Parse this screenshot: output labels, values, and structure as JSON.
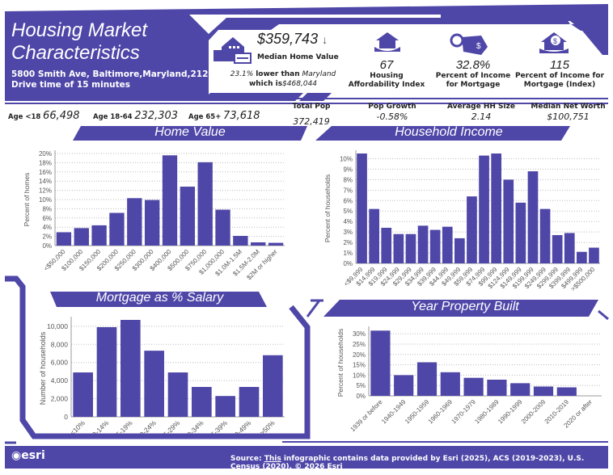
{
  "header": {
    "title_line1": "Housing Market",
    "title_line2": "Characteristics",
    "address": "5800 Smith Ave, Baltimore,Maryland,21209",
    "drive_time": "Drive time of 15 minutes"
  },
  "median_home": {
    "value": "$359,743",
    "arrow": "↓",
    "label": "Median Home Value",
    "compare_pct": "23.1%",
    "compare_text": "lower than",
    "compare_state": "Maryland",
    "which_is": "which is",
    "state_value": "$468,044",
    "icon": "house-icon"
  },
  "kpis": [
    {
      "value": "67",
      "label": "Housing Affordability Index",
      "icon": "house-hand-icon"
    },
    {
      "value": "32.8%",
      "label": "Percent of Income for Mortgage",
      "icon": "price-tag-icon"
    },
    {
      "value": "115",
      "label": "Percent of Income for Mortgage (Index)",
      "icon": "house-dollar-icon"
    }
  ],
  "ages": [
    {
      "label": "Age <18",
      "value": "66,498"
    },
    {
      "label": "Age 18-64",
      "value": "232,303"
    },
    {
      "label": "Age 65+",
      "value": "73,618"
    }
  ],
  "stats": [
    {
      "label": "Total Pop",
      "value": "372,419"
    },
    {
      "label": "Pop Growth",
      "value": "-0.58%"
    },
    {
      "label": "Average HH Size",
      "value": "2.14"
    },
    {
      "label": "Median Net Worth",
      "value": "$100,751"
    }
  ],
  "sections": {
    "home_value": "Home Value",
    "household_income": "Household Income",
    "mortgage": "Mortgage as % Salary",
    "year_built": "Year Property Built"
  },
  "footer": {
    "logo": "esri",
    "source_label": "Source:",
    "source_link": "This",
    "source_text": "infographic contains data provided by Esri (2025), ACS (2019-2023), U.S. Census (2020). © 2026 Esri"
  },
  "colors": {
    "brand": "#4f47a8",
    "grid": "#bbbbbb"
  },
  "chart_data": [
    {
      "type": "bar",
      "ylabel": "Percent of homes",
      "ylim": [
        0,
        20
      ],
      "yticks": [
        "0%",
        "2%",
        "4%",
        "6%",
        "8%",
        "10%",
        "12%",
        "14%",
        "16%",
        "18%",
        "20%"
      ],
      "categories": [
        "<$50,000",
        "$100,000",
        "$150,000",
        "$200,000",
        "$250,000",
        "$300,000",
        "$400,000",
        "$500,000",
        "$750,000",
        "$1,000,000",
        "$1.0M-1.5M",
        "$1.5M-2.0M",
        "$2M or higher"
      ],
      "values": [
        2.9,
        3.8,
        4.4,
        7.1,
        10.3,
        9.9,
        19.6,
        12.8,
        18.1,
        7.8,
        2.1,
        0.7,
        0.6
      ],
      "grid": true
    },
    {
      "type": "bar",
      "ylabel": "Percent of households",
      "ylim": [
        0,
        10.5
      ],
      "yticks": [
        "0%",
        "1%",
        "2%",
        "3%",
        "4%",
        "5%",
        "6%",
        "7%",
        "8%",
        "9%",
        "10%"
      ],
      "categories": [
        "<$9,999",
        "$14,999",
        "$19,999",
        "$24,999",
        "$29,999",
        "$34,999",
        "$39,999",
        "$44,999",
        "$49,999",
        "$59,999",
        "$74,999",
        "$99,999",
        "$124,999",
        "$149,999",
        "$199,999",
        "$249,999",
        "$299,999",
        "$399,999",
        "$499,999",
        ">$500,000"
      ],
      "values": [
        10.5,
        5.2,
        3.4,
        2.8,
        2.8,
        3.6,
        3.2,
        3.5,
        2.4,
        6.4,
        10.3,
        10.5,
        8.0,
        5.8,
        8.8,
        5.2,
        2.7,
        2.9,
        1.1,
        1.5
      ],
      "grid": true
    },
    {
      "type": "bar",
      "ylabel": "Number of households",
      "ylim": [
        0,
        10700
      ],
      "yticks": [
        "0",
        "2,000",
        "4,000",
        "6,000",
        "8,000",
        "10,000"
      ],
      "categories": [
        "<10%",
        "10-14%",
        "15-19%",
        "20-24%",
        "25-29%",
        "30-34%",
        "35-39%",
        "40-49%",
        ">50%"
      ],
      "values": [
        4900,
        9900,
        10700,
        7300,
        4900,
        3300,
        2300,
        3300,
        6800
      ],
      "grid": true
    },
    {
      "type": "bar",
      "ylabel": "Percent of households",
      "ylim": [
        0,
        32
      ],
      "yticks": [
        "0%",
        "5%",
        "10%",
        "15%",
        "20%",
        "25%",
        "30%"
      ],
      "categories": [
        "1939 or before",
        "1940-1949",
        "1950-1959",
        "1960-1969",
        "1970-1979",
        "1980-1989",
        "1990-1999",
        "2000-2009",
        "2010-2019",
        "2020 or after"
      ],
      "values": [
        31.5,
        10.0,
        16.2,
        11.4,
        8.7,
        7.8,
        6.1,
        4.5,
        4.1,
        0.0
      ],
      "grid": true
    }
  ]
}
